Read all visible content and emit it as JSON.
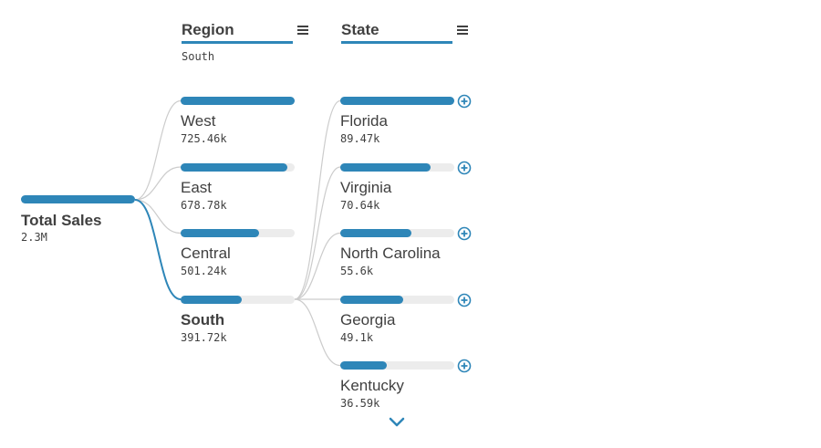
{
  "colors": {
    "accent": "#2e86b8",
    "track": "#ececec",
    "link": "#cccccc",
    "text": "#404040"
  },
  "columns": [
    {
      "header": "Region",
      "selection": "South"
    },
    {
      "header": "State",
      "selection": ""
    }
  ],
  "chart_data": {
    "type": "decomposition_tree",
    "root": {
      "label": "Total Sales",
      "display": "2.3M",
      "value": 2300000
    },
    "levels": [
      {
        "field": "Region",
        "selected": "South",
        "nodes": [
          {
            "label": "West",
            "display": "725.46k",
            "value": 725460
          },
          {
            "label": "East",
            "display": "678.78k",
            "value": 678780
          },
          {
            "label": "Central",
            "display": "501.24k",
            "value": 501240
          },
          {
            "label": "South",
            "display": "391.72k",
            "value": 391720
          }
        ]
      },
      {
        "field": "State",
        "parent": "South",
        "nodes": [
          {
            "label": "Florida",
            "display": "89.47k",
            "value": 89470
          },
          {
            "label": "Virginia",
            "display": "70.64k",
            "value": 70640
          },
          {
            "label": "North Carolina",
            "display": "55.6k",
            "value": 55600
          },
          {
            "label": "Georgia",
            "display": "49.1k",
            "value": 49100
          },
          {
            "label": "Kentucky",
            "display": "36.59k",
            "value": 36590
          }
        ]
      }
    ]
  }
}
